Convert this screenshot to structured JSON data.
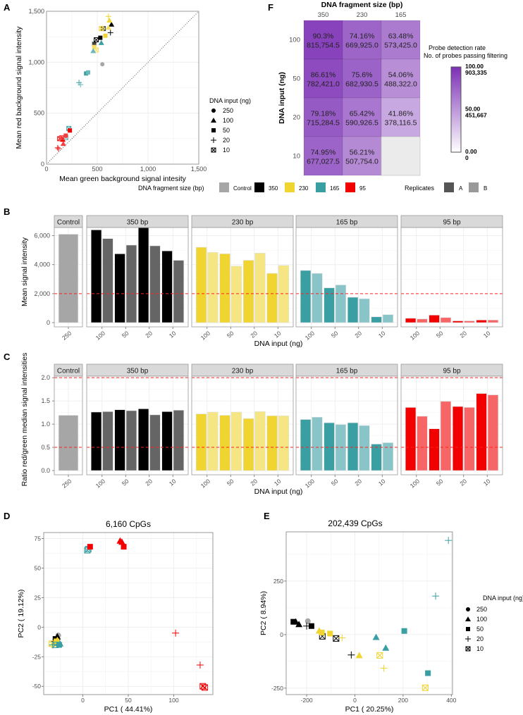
{
  "colors": {
    "control": "#a6a6a6",
    "350": "#000000",
    "230": "#f0d530",
    "165": "#3a9fa3",
    "95": "#f20000",
    "threshold": "#ff2020"
  },
  "chart_data": [
    {
      "panel": "A",
      "type": "scatter",
      "title": "",
      "xlabel": "Mean green background signal intesity",
      "ylabel": "Mean red background signal intensity",
      "xlim": [
        0,
        1500
      ],
      "ylim": [
        0,
        1500
      ],
      "xticks": [
        "0",
        "500",
        "1,000",
        "1,500"
      ],
      "yticks": [
        "0",
        "500",
        "1,000",
        "1,500"
      ],
      "diagonal": "y = x (dotted)",
      "legend": {
        "title": "DNA input (ng)",
        "entries": [
          "250",
          "100",
          "50",
          "20",
          "10"
        ],
        "shapes": [
          "circle",
          "triangle",
          "square",
          "plus",
          "boxx"
        ]
      },
      "points": [
        {
          "x": 550,
          "y": 980,
          "size": "Control",
          "input": "250",
          "rep": "A"
        },
        {
          "x": 640,
          "y": 1370,
          "size": "350",
          "input": "100",
          "rep": "A"
        },
        {
          "x": 530,
          "y": 1240,
          "size": "350",
          "input": "50",
          "rep": "A"
        },
        {
          "x": 470,
          "y": 1180,
          "size": "350",
          "input": "50",
          "rep": "B"
        },
        {
          "x": 630,
          "y": 1290,
          "size": "350",
          "input": "20",
          "rep": "A"
        },
        {
          "x": 490,
          "y": 1220,
          "size": "350",
          "input": "10",
          "rep": "A"
        },
        {
          "x": 560,
          "y": 1330,
          "size": "350",
          "input": "10",
          "rep": "B"
        },
        {
          "x": 620,
          "y": 1410,
          "size": "230",
          "input": "100",
          "rep": "A"
        },
        {
          "x": 610,
          "y": 1340,
          "size": "230",
          "input": "100",
          "rep": "B"
        },
        {
          "x": 580,
          "y": 1260,
          "size": "230",
          "input": "50",
          "rep": "A"
        },
        {
          "x": 470,
          "y": 1150,
          "size": "230",
          "input": "50",
          "rep": "B"
        },
        {
          "x": 610,
          "y": 1450,
          "size": "230",
          "input": "20",
          "rep": "A"
        },
        {
          "x": 540,
          "y": 1330,
          "size": "230",
          "input": "10",
          "rep": "A"
        },
        {
          "x": 490,
          "y": 1120,
          "size": "230",
          "input": "10",
          "rep": "B"
        },
        {
          "x": 540,
          "y": 1190,
          "size": "165",
          "input": "100",
          "rep": "A"
        },
        {
          "x": 460,
          "y": 1110,
          "size": "165",
          "input": "100",
          "rep": "B"
        },
        {
          "x": 390,
          "y": 890,
          "size": "165",
          "input": "50",
          "rep": "A"
        },
        {
          "x": 410,
          "y": 900,
          "size": "165",
          "input": "50",
          "rep": "B"
        },
        {
          "x": 320,
          "y": 800,
          "size": "165",
          "input": "20",
          "rep": "A"
        },
        {
          "x": 335,
          "y": 780,
          "size": "165",
          "input": "20",
          "rep": "B"
        },
        {
          "x": 220,
          "y": 350,
          "size": "165",
          "input": "10",
          "rep": "A"
        },
        {
          "x": 190,
          "y": 260,
          "size": "165",
          "input": "10",
          "rep": "B"
        },
        {
          "x": 160,
          "y": 240,
          "size": "95",
          "input": "100",
          "rep": "A"
        },
        {
          "x": 165,
          "y": 200,
          "size": "95",
          "input": "100",
          "rep": "B"
        },
        {
          "x": 230,
          "y": 330,
          "size": "95",
          "input": "50",
          "rep": "A"
        },
        {
          "x": 190,
          "y": 280,
          "size": "95",
          "input": "50",
          "rep": "B"
        },
        {
          "x": 110,
          "y": 160,
          "size": "95",
          "input": "20",
          "rep": "A"
        },
        {
          "x": 120,
          "y": 150,
          "size": "95",
          "input": "20",
          "rep": "B"
        },
        {
          "x": 130,
          "y": 250,
          "size": "95",
          "input": "10",
          "rep": "A"
        },
        {
          "x": 150,
          "y": 260,
          "size": "95",
          "input": "10",
          "rep": "B"
        }
      ]
    },
    {
      "panel": "F",
      "type": "heatmap",
      "title": "DNA fragment size (bp)",
      "xlabel": "DNA fragment size (bp)",
      "ylabel": "DNA input (ng)",
      "columns": [
        "350",
        "230",
        "165"
      ],
      "rows": [
        "100",
        "50",
        "20",
        "10"
      ],
      "cells": [
        [
          {
            "pct": 90.3,
            "label": "90.3%",
            "count": "815,754.5"
          },
          {
            "pct": 74.16,
            "label": "74.16%",
            "count": "669,925.0"
          },
          {
            "pct": 63.48,
            "label": "63.48%",
            "count": "573,425.0"
          }
        ],
        [
          {
            "pct": 86.61,
            "label": "86.61%",
            "count": "782,421.0"
          },
          {
            "pct": 75.6,
            "label": "75.6%",
            "count": "682,930.5"
          },
          {
            "pct": 54.06,
            "label": "54.06%",
            "count": "488,322.0"
          }
        ],
        [
          {
            "pct": 79.18,
            "label": "79.18%",
            "count": "715,284.5"
          },
          {
            "pct": 65.42,
            "label": "65.42%",
            "count": "590,926.5"
          },
          {
            "pct": 41.86,
            "label": "41.86%",
            "count": "378,116.5"
          }
        ],
        [
          {
            "pct": 74.95,
            "label": "74.95%",
            "count": "677,027.5"
          },
          {
            "pct": 56.21,
            "label": "56.21%",
            "count": "507,754.0"
          },
          null
        ]
      ],
      "colorbar": {
        "title1": "Probe detection rate",
        "title2": "No. of probes passing filtering",
        "ticks": [
          {
            "value": 100,
            "label1": "100.00",
            "label2": "903,335"
          },
          {
            "value": 50,
            "label1": "50.00",
            "label2": "451,667"
          },
          {
            "value": 0,
            "label1": "0.00",
            "label2": "0"
          }
        ],
        "low": "#ffffff",
        "high": "#7b2fb5"
      }
    },
    {
      "panel": "B",
      "type": "bar",
      "ylabel": "Mean signal intensity",
      "xlabel": "DNA input (ng)",
      "ylim": [
        0,
        7000
      ],
      "yticks": [
        "0",
        "2,000",
        "4,000",
        "6,000"
      ],
      "ytick_values": [
        0,
        2000,
        4000,
        6000
      ],
      "threshold_lines": [
        2000
      ],
      "facets": [
        {
          "label": "Control",
          "key": "control",
          "categories": [
            "250"
          ],
          "A": [
            6100
          ],
          "B": [
            null
          ]
        },
        {
          "label": "350 bp",
          "key": "350",
          "categories": [
            "100",
            "50",
            "20",
            "10"
          ],
          "A": [
            6400,
            4750,
            6550,
            4950
          ],
          "B": [
            5800,
            5350,
            5300,
            4300
          ]
        },
        {
          "label": "230 bp",
          "key": "230",
          "categories": [
            "100",
            "50",
            "20",
            "10"
          ],
          "A": [
            5200,
            4750,
            4300,
            3400
          ],
          "B": [
            4850,
            3900,
            4800,
            3950
          ]
        },
        {
          "label": "165 bp",
          "key": "165",
          "categories": [
            "100",
            "50",
            "20",
            "10"
          ],
          "A": [
            3600,
            2400,
            1750,
            400
          ],
          "B": [
            3400,
            2600,
            1650,
            550
          ]
        },
        {
          "label": "95 bp",
          "key": "95",
          "categories": [
            "100",
            "50",
            "20",
            "10"
          ],
          "A": [
            300,
            520,
            120,
            180
          ],
          "B": [
            250,
            350,
            120,
            180
          ]
        }
      ]
    },
    {
      "panel": "C",
      "type": "bar",
      "ylabel": "Ratio red/green median signal intensities",
      "xlabel": "DNA input (ng)",
      "ylim": [
        0,
        2.2
      ],
      "yticks": [
        "0.0",
        "0.5",
        "1.0",
        "1.5",
        "2.0"
      ],
      "ytick_values": [
        0,
        0.5,
        1.0,
        1.5,
        2.0
      ],
      "threshold_lines": [
        0.5,
        2.0
      ],
      "facets": [
        {
          "label": "Control",
          "key": "control",
          "categories": [
            "250"
          ],
          "A": [
            1.19
          ],
          "B": [
            null
          ]
        },
        {
          "label": "350 bp",
          "key": "350",
          "categories": [
            "100",
            "50",
            "20",
            "10"
          ],
          "A": [
            1.26,
            1.31,
            1.33,
            1.27
          ],
          "B": [
            1.27,
            1.29,
            1.2,
            1.3
          ]
        },
        {
          "label": "230 bp",
          "key": "230",
          "categories": [
            "100",
            "50",
            "20",
            "10"
          ],
          "A": [
            1.22,
            1.19,
            1.12,
            1.18
          ],
          "B": [
            1.26,
            1.26,
            1.27,
            1.18
          ]
        },
        {
          "label": "165 bp",
          "key": "165",
          "categories": [
            "100",
            "50",
            "20",
            "10"
          ],
          "A": [
            1.1,
            1.03,
            1.03,
            0.57
          ],
          "B": [
            1.15,
            0.99,
            0.97,
            0.6
          ]
        },
        {
          "label": "95 bp",
          "key": "95",
          "categories": [
            "100",
            "50",
            "20",
            "10"
          ],
          "A": [
            1.36,
            0.9,
            1.38,
            1.66
          ],
          "B": [
            1.17,
            1.49,
            1.36,
            1.63
          ]
        }
      ]
    },
    {
      "panel": "D",
      "type": "scatter",
      "title": "6,160 CpGs",
      "xlabel": "PC1 ( 44.41%)",
      "ylabel": "PC2 ( 19.12%)",
      "xlim": [
        -43,
        143
      ],
      "ylim": [
        -57,
        80
      ],
      "xticks": [
        0,
        50,
        100
      ],
      "yticks": [
        -50,
        -25,
        0,
        25,
        50,
        75
      ],
      "points": [
        {
          "x": -27,
          "y": -7,
          "size": "Control",
          "input": "250"
        },
        {
          "x": -28,
          "y": -8,
          "size": "350",
          "input": "100"
        },
        {
          "x": -30,
          "y": -10,
          "size": "350",
          "input": "50"
        },
        {
          "x": -31,
          "y": -12,
          "size": "350",
          "input": "20"
        },
        {
          "x": -29,
          "y": -13,
          "size": "350",
          "input": "10"
        },
        {
          "x": -28,
          "y": -11,
          "size": "230",
          "input": "100"
        },
        {
          "x": -29,
          "y": -12,
          "size": "230",
          "input": "50"
        },
        {
          "x": -34,
          "y": -14,
          "size": "230",
          "input": "10"
        },
        {
          "x": -31,
          "y": -15,
          "size": "230",
          "input": "10"
        },
        {
          "x": -25,
          "y": -14,
          "size": "165",
          "input": "100"
        },
        {
          "x": -26,
          "y": -15,
          "size": "165",
          "input": "50"
        },
        {
          "x": -33,
          "y": -15,
          "size": "165",
          "input": "20"
        },
        {
          "x": -30,
          "y": -15,
          "size": "165",
          "input": "10"
        },
        {
          "x": 6,
          "y": 66,
          "size": "165",
          "input": "10"
        },
        {
          "x": 5,
          "y": 65,
          "size": "165",
          "input": "10"
        },
        {
          "x": 8,
          "y": 68,
          "size": "95",
          "input": "50"
        },
        {
          "x": 41,
          "y": 73,
          "size": "95",
          "input": "100"
        },
        {
          "x": 43,
          "y": 72,
          "size": "95",
          "input": "100"
        },
        {
          "x": 45,
          "y": 68,
          "size": "95",
          "input": "50"
        },
        {
          "x": 102,
          "y": -5,
          "size": "95",
          "input": "20"
        },
        {
          "x": 129,
          "y": -32,
          "size": "95",
          "input": "20"
        },
        {
          "x": 132,
          "y": -50,
          "size": "95",
          "input": "10"
        },
        {
          "x": 134,
          "y": -51,
          "size": "95",
          "input": "10"
        }
      ]
    },
    {
      "panel": "E",
      "type": "scatter",
      "title": "202,439 CpGs",
      "xlabel": "PC1 ( 20.25%)",
      "ylabel": "PC2 ( 8.94%)",
      "xlim": [
        -285,
        405
      ],
      "ylim": [
        -280,
        480
      ],
      "xticks": [
        -200,
        0,
        200,
        400
      ],
      "yticks": [
        -250,
        0,
        250
      ],
      "legend": {
        "title": "DNA input (ng)",
        "entries": [
          "250",
          "100",
          "50",
          "20",
          "10"
        ],
        "shapes": [
          "circle",
          "triangle",
          "square",
          "plus",
          "boxx"
        ]
      },
      "points": [
        {
          "x": -195,
          "y": 63,
          "size": "Control",
          "input": "250"
        },
        {
          "x": -245,
          "y": 60,
          "size": "350",
          "input": "100"
        },
        {
          "x": -232,
          "y": 48,
          "size": "350",
          "input": "100"
        },
        {
          "x": -255,
          "y": 60,
          "size": "350",
          "input": "50"
        },
        {
          "x": -180,
          "y": 40,
          "size": "350",
          "input": "50"
        },
        {
          "x": -200,
          "y": 40,
          "size": "350",
          "input": "20"
        },
        {
          "x": -15,
          "y": -95,
          "size": "350",
          "input": "20"
        },
        {
          "x": -135,
          "y": -8,
          "size": "350",
          "input": "10"
        },
        {
          "x": -78,
          "y": -18,
          "size": "350",
          "input": "10"
        },
        {
          "x": -148,
          "y": 18,
          "size": "230",
          "input": "100"
        },
        {
          "x": 18,
          "y": -97,
          "size": "230",
          "input": "100"
        },
        {
          "x": -137,
          "y": 10,
          "size": "230",
          "input": "50"
        },
        {
          "x": -103,
          "y": 5,
          "size": "230",
          "input": "50"
        },
        {
          "x": -53,
          "y": -15,
          "size": "230",
          "input": "20"
        },
        {
          "x": 120,
          "y": -157,
          "size": "230",
          "input": "20"
        },
        {
          "x": 103,
          "y": -97,
          "size": "230",
          "input": "10"
        },
        {
          "x": 292,
          "y": -248,
          "size": "230",
          "input": "10"
        },
        {
          "x": 88,
          "y": -12,
          "size": "165",
          "input": "100"
        },
        {
          "x": 128,
          "y": -62,
          "size": "165",
          "input": "100"
        },
        {
          "x": 205,
          "y": 17,
          "size": "165",
          "input": "50"
        },
        {
          "x": 303,
          "y": -180,
          "size": "165",
          "input": "50"
        },
        {
          "x": 335,
          "y": 180,
          "size": "165",
          "input": "20"
        },
        {
          "x": 388,
          "y": 440,
          "size": "165",
          "input": "20"
        }
      ]
    }
  ],
  "panel_labels": [
    "A",
    "B",
    "C",
    "D",
    "E",
    "F"
  ],
  "shared_legend": {
    "fragment_title": "DNA fragment size (bp)",
    "fragment_entries": [
      {
        "label": "Control",
        "color": "#a6a6a6"
      },
      {
        "label": "350",
        "color": "#000000"
      },
      {
        "label": "230",
        "color": "#f0d530"
      },
      {
        "label": "165",
        "color": "#3a9fa3"
      },
      {
        "label": "95",
        "color": "#f20000"
      }
    ],
    "replicates_title": "Replicates",
    "replicate_entries": [
      {
        "label": "A",
        "color": "#555555"
      },
      {
        "label": "B",
        "color": "#999999"
      }
    ]
  }
}
